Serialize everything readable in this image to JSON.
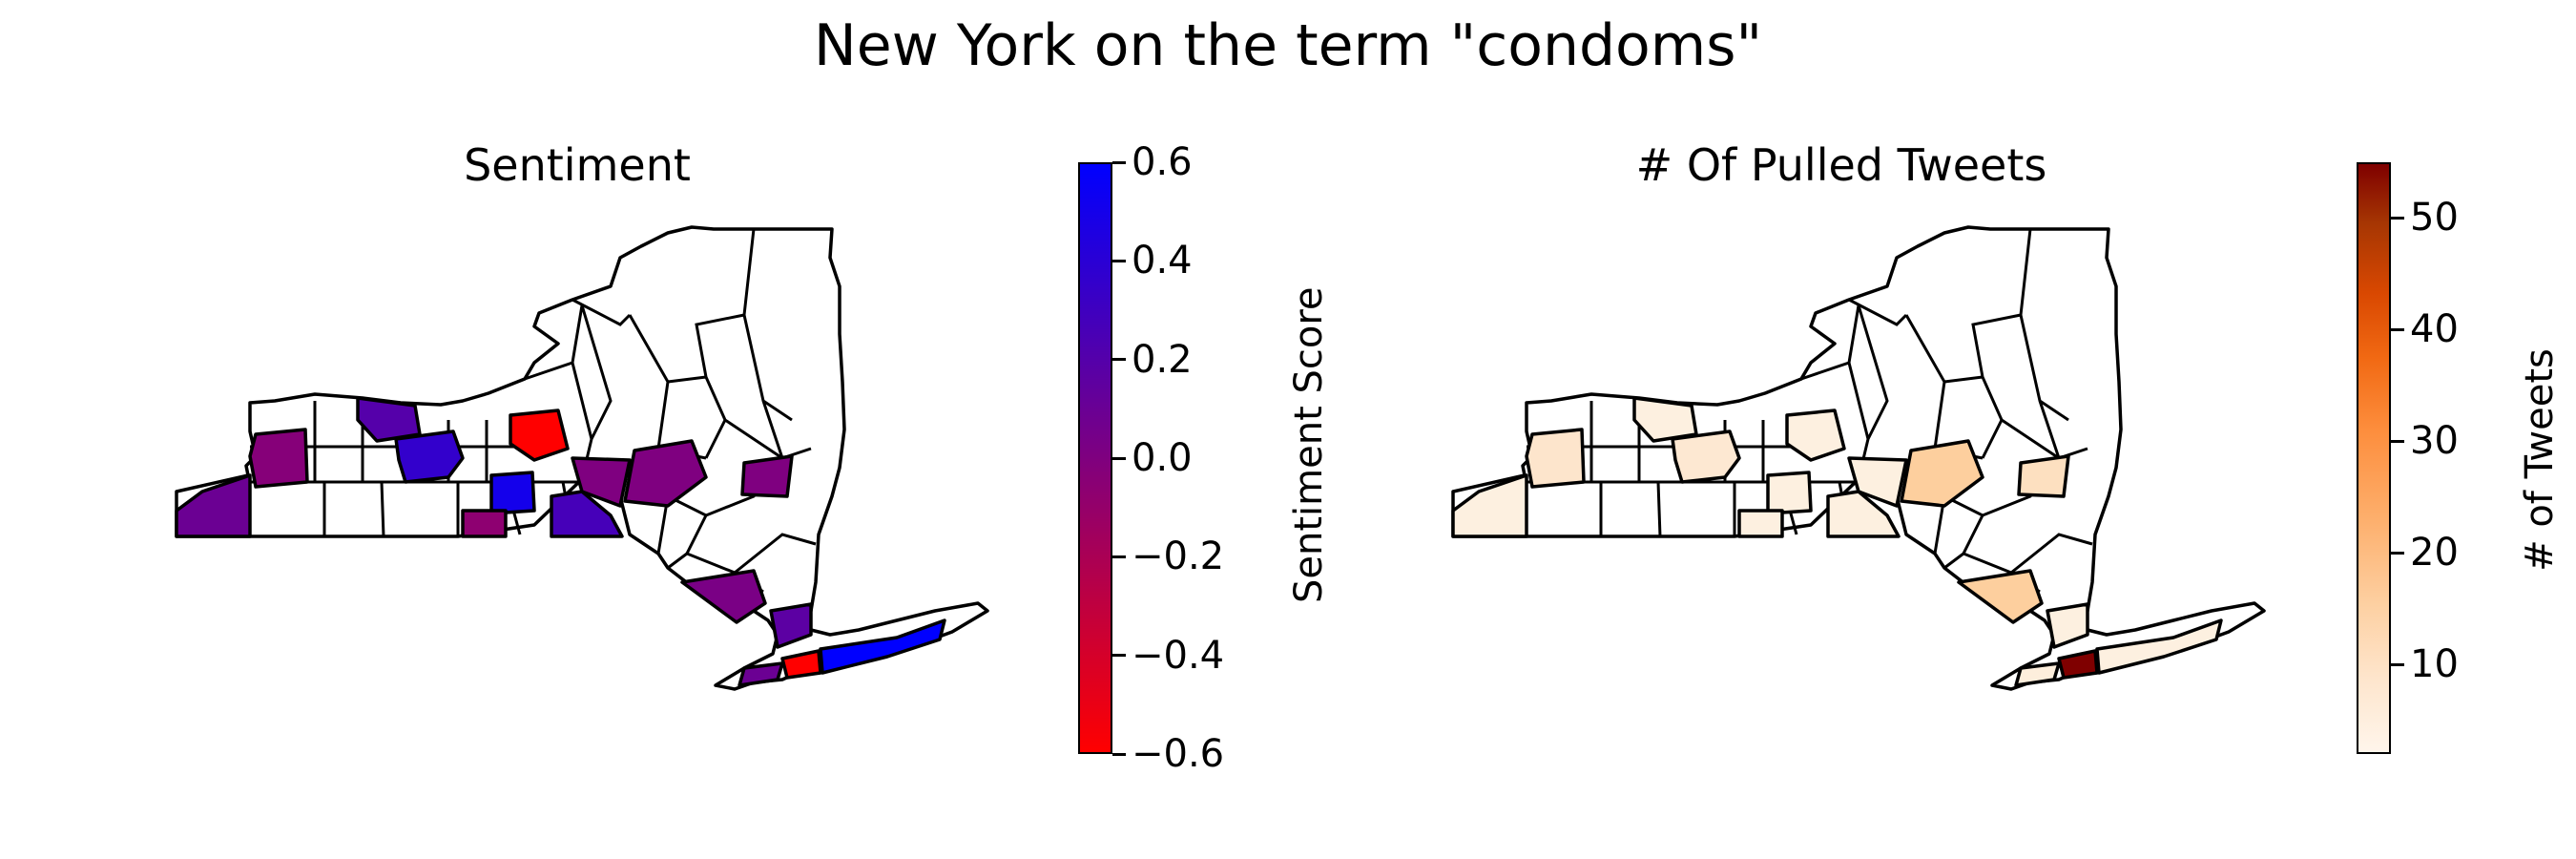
{
  "figure": {
    "title": "New York on the term \"condoms\""
  },
  "left_map": {
    "title": "Sentiment",
    "colorbar": {
      "label": "Sentiment Score",
      "min": -0.6,
      "max": 0.6,
      "ticks": [
        "0.6",
        "0.4",
        "0.2",
        "0.0",
        "−0.2",
        "−0.4",
        "−0.6"
      ],
      "tick_values": [
        0.6,
        0.4,
        0.2,
        0.0,
        -0.2,
        -0.4,
        -0.6
      ],
      "colors": [
        "#ff0000",
        "#7f007f",
        "#0000ff"
      ]
    }
  },
  "right_map": {
    "title": "# Of Pulled Tweets",
    "colorbar": {
      "label": "# of Tweets",
      "min": 2,
      "max": 55,
      "ticks": [
        "50",
        "40",
        "30",
        "20",
        "10"
      ],
      "tick_values": [
        50,
        40,
        30,
        20,
        10
      ],
      "colors": [
        "#fff5eb",
        "#fdd0a2",
        "#fd8d3c",
        "#d94801",
        "#7f0000"
      ]
    }
  }
}
